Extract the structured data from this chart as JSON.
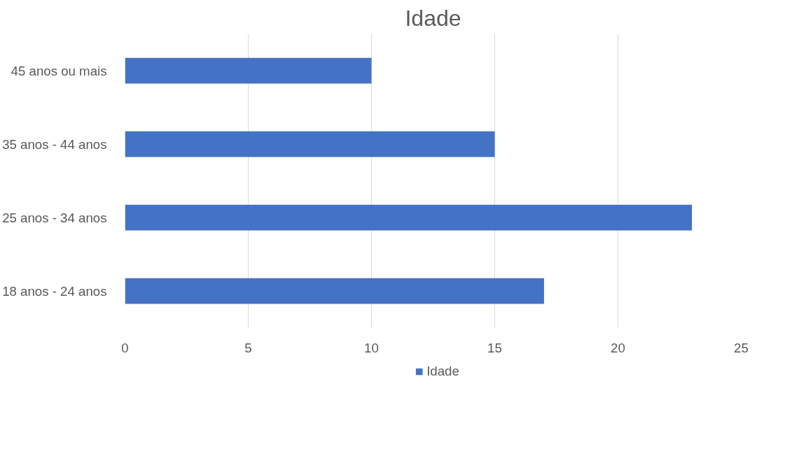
{
  "chart_data": {
    "type": "bar",
    "orientation": "horizontal",
    "title": "Idade",
    "categories": [
      "45 anos ou mais",
      "35 anos - 44 anos",
      "25 anos - 34 anos",
      "18 anos - 24 anos"
    ],
    "series": [
      {
        "name": "Idade",
        "color": "#4472c4",
        "values": [
          10,
          15,
          23,
          17
        ]
      }
    ],
    "xlim": [
      0,
      25
    ],
    "xticks": [
      0,
      5,
      10,
      15,
      20,
      25
    ],
    "grid": "x",
    "legend": "bottom"
  }
}
